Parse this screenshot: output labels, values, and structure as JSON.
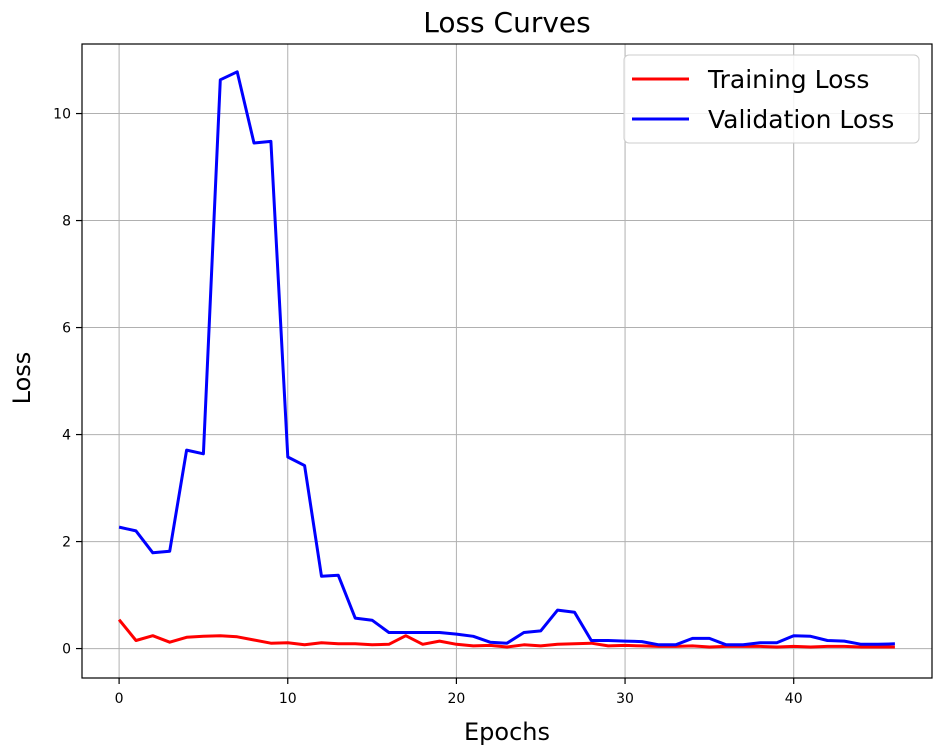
{
  "chart_data": {
    "type": "line",
    "title": "Loss Curves",
    "xlabel": "Epochs",
    "ylabel": "Loss",
    "xlim": [
      -2.2,
      48.2
    ],
    "ylim": [
      -0.55,
      11.3
    ],
    "xticks": [
      0,
      10,
      20,
      30,
      40
    ],
    "yticks": [
      0,
      2,
      4,
      6,
      8,
      10
    ],
    "grid": true,
    "legend_position": "top-right",
    "series": [
      {
        "name": "Training Loss",
        "color": "#ff0000",
        "x": [
          0,
          1,
          2,
          3,
          4,
          5,
          6,
          7,
          8,
          9,
          10,
          11,
          12,
          13,
          14,
          15,
          16,
          17,
          18,
          19,
          20,
          21,
          22,
          23,
          24,
          25,
          26,
          27,
          28,
          29,
          30,
          31,
          32,
          33,
          34,
          35,
          36,
          37,
          38,
          39,
          40,
          41,
          42,
          43,
          44,
          45,
          46
        ],
        "values": [
          0.54,
          0.15,
          0.24,
          0.12,
          0.21,
          0.23,
          0.24,
          0.22,
          0.16,
          0.1,
          0.11,
          0.07,
          0.11,
          0.09,
          0.09,
          0.07,
          0.08,
          0.24,
          0.08,
          0.14,
          0.08,
          0.05,
          0.06,
          0.03,
          0.07,
          0.05,
          0.08,
          0.09,
          0.1,
          0.05,
          0.06,
          0.05,
          0.04,
          0.04,
          0.05,
          0.03,
          0.04,
          0.04,
          0.04,
          0.03,
          0.04,
          0.03,
          0.04,
          0.04,
          0.03,
          0.03,
          0.03
        ]
      },
      {
        "name": "Validation Loss",
        "color": "#0000ff",
        "x": [
          0,
          1,
          2,
          3,
          4,
          5,
          6,
          7,
          8,
          9,
          10,
          11,
          12,
          13,
          14,
          15,
          16,
          17,
          18,
          19,
          20,
          21,
          22,
          23,
          24,
          25,
          26,
          27,
          28,
          29,
          30,
          31,
          32,
          33,
          34,
          35,
          36,
          37,
          38,
          39,
          40,
          41,
          42,
          43,
          44,
          45,
          46
        ],
        "values": [
          2.27,
          2.2,
          1.79,
          1.82,
          3.71,
          3.64,
          10.63,
          10.78,
          9.45,
          9.48,
          3.58,
          3.42,
          1.35,
          1.37,
          0.57,
          0.53,
          0.3,
          0.3,
          0.3,
          0.3,
          0.27,
          0.23,
          0.12,
          0.1,
          0.3,
          0.33,
          0.72,
          0.68,
          0.15,
          0.15,
          0.14,
          0.13,
          0.07,
          0.07,
          0.19,
          0.19,
          0.07,
          0.07,
          0.11,
          0.11,
          0.24,
          0.23,
          0.15,
          0.14,
          0.08,
          0.08,
          0.09
        ]
      }
    ]
  }
}
